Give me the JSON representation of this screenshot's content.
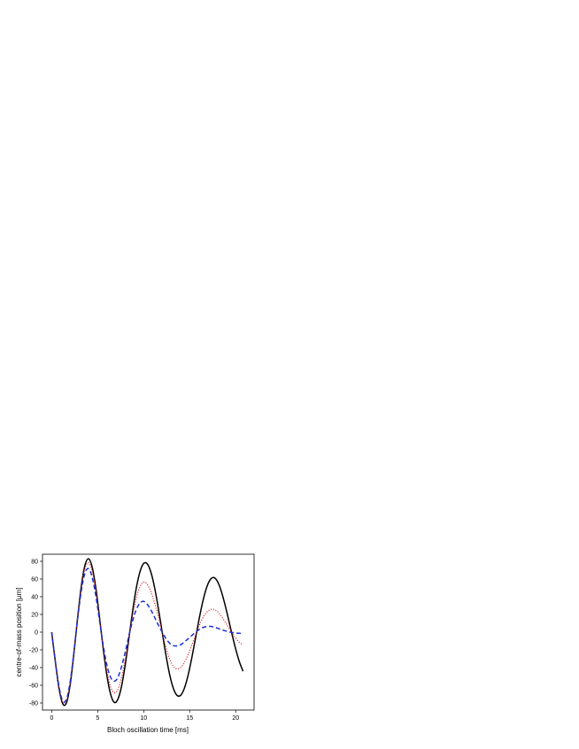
{
  "chart_data": {
    "type": "line",
    "title": "",
    "xlabel": "Bloch oscillation time [ms]",
    "ylabel": "centre-of-mass position [µm]",
    "xlim": [
      -1,
      22
    ],
    "ylim": [
      -88,
      88
    ],
    "xticks": [
      0,
      5,
      10,
      15,
      20
    ],
    "yticks": [
      -80,
      -60,
      -40,
      -20,
      0,
      20,
      40,
      60,
      80
    ],
    "grid": false,
    "legend": "none",
    "series": [
      {
        "color": "#000000",
        "style": "solid",
        "x": [
          0,
          0.4,
          0.8,
          1.2,
          1.6,
          2.0,
          2.4,
          2.8,
          3.2,
          3.6,
          4.0,
          4.4,
          4.8,
          5.2,
          5.6,
          6.0,
          6.4,
          6.8,
          7.2,
          7.6,
          8.0,
          8.4,
          8.8,
          9.2,
          9.6,
          10.0,
          10.4,
          10.8,
          11.2,
          11.6,
          12.0,
          12.4,
          12.8,
          13.2,
          13.6,
          14.0,
          14.4,
          14.8,
          15.2,
          15.6,
          16.0,
          16.4,
          16.8,
          17.2,
          17.6,
          18.0,
          18.4,
          18.8,
          19.2,
          19.6,
          20.0,
          20.4,
          20.8
        ],
        "y": [
          0,
          -33.7,
          -63.9,
          -80.9,
          -80.0,
          -60.1,
          -25.6,
          14.5,
          50.4,
          74.8,
          82.9,
          73.5,
          49.6,
          16.5,
          -18.6,
          -48.9,
          -69.9,
          -79.3,
          -75.7,
          -60.8,
          -36.5,
          -6.4,
          24.0,
          50.0,
          68.3,
          77.6,
          77.0,
          67.1,
          49.6,
          26.4,
          0.6,
          -24.8,
          -46.9,
          -62.8,
          -71.2,
          -71.5,
          -64.0,
          -49.8,
          -30.6,
          -8.7,
          13.4,
          33.4,
          49.1,
          58.8,
          61.7,
          57.6,
          47.4,
          32.6,
          15.4,
          -2.4,
          -19.1,
          -33.4,
          -44.2
        ]
      },
      {
        "color": "#d42020",
        "style": "dotted",
        "x": [
          0,
          0.4,
          0.8,
          1.2,
          1.6,
          2.0,
          2.4,
          2.8,
          3.2,
          3.6,
          4.0,
          4.4,
          4.8,
          5.2,
          5.6,
          6.0,
          6.4,
          6.8,
          7.2,
          7.6,
          8.0,
          8.4,
          8.8,
          9.2,
          9.6,
          10.0,
          10.4,
          10.8,
          11.2,
          11.6,
          12.0,
          12.4,
          12.8,
          13.2,
          13.6,
          14.0,
          14.4,
          14.8,
          15.2,
          15.6,
          16.0,
          16.4,
          16.8,
          17.2,
          17.6,
          18.0,
          18.4,
          18.8,
          19.2,
          19.6,
          20.0,
          20.4,
          20.8
        ],
        "y": [
          0,
          -33.3,
          -62.9,
          -79.5,
          -78.4,
          -58.7,
          -24.8,
          14.0,
          48.3,
          71.2,
          78.3,
          68.7,
          45.9,
          15.0,
          -16.8,
          -43.6,
          -61.5,
          -68.5,
          -64.6,
          -50.9,
          -29.9,
          -5.1,
          18.9,
          38.7,
          51.5,
          56.6,
          53.7,
          45.0,
          32.2,
          17.6,
          0.4,
          -16.1,
          -29.5,
          -38.3,
          -41.5,
          -40.1,
          -34.7,
          -26.0,
          -15.5,
          -4.3,
          6.4,
          15.5,
          21.9,
          25.3,
          25.9,
          23.4,
          18.7,
          12.4,
          5.8,
          -0.9,
          -6.8,
          -11.4,
          -14.3
        ]
      },
      {
        "color": "#1c2fd6",
        "style": "dashed",
        "x": [
          0,
          0.4,
          0.8,
          1.2,
          1.6,
          2.0,
          2.4,
          2.8,
          3.2,
          3.6,
          4.0,
          4.4,
          4.8,
          5.2,
          5.6,
          6.0,
          6.4,
          6.8,
          7.2,
          7.6,
          8.0,
          8.4,
          8.8,
          9.2,
          9.6,
          10.0,
          10.4,
          10.8,
          11.2,
          11.6,
          12.0,
          12.4,
          12.8,
          13.2,
          13.6,
          14.0,
          14.4,
          14.8,
          15.2,
          15.6,
          16.0,
          16.4,
          16.8,
          17.2,
          17.6,
          18.0,
          18.4,
          18.8,
          19.2,
          19.6,
          20.0,
          20.4,
          20.8
        ],
        "y": [
          0,
          -33.0,
          -61.9,
          -77.6,
          -76.0,
          -56.6,
          -23.8,
          13.2,
          45.3,
          66.1,
          71.7,
          62.0,
          40.8,
          13.1,
          -14.8,
          -37.1,
          -51.0,
          -55.4,
          -51.0,
          -38.7,
          -22.2,
          -3.6,
          13.0,
          25.6,
          32.8,
          34.8,
          31.1,
          24.7,
          16.4,
          7.9,
          0.2,
          -7.0,
          -12.3,
          -15.2,
          -15.6,
          -14.3,
          -11.3,
          -7.8,
          -4.1,
          -0.4,
          2.8,
          5.0,
          6.2,
          6.5,
          5.9,
          4.6,
          3.0,
          1.7,
          0.5,
          -0.4,
          -1.0,
          -1.3,
          -1.4
        ]
      }
    ]
  }
}
